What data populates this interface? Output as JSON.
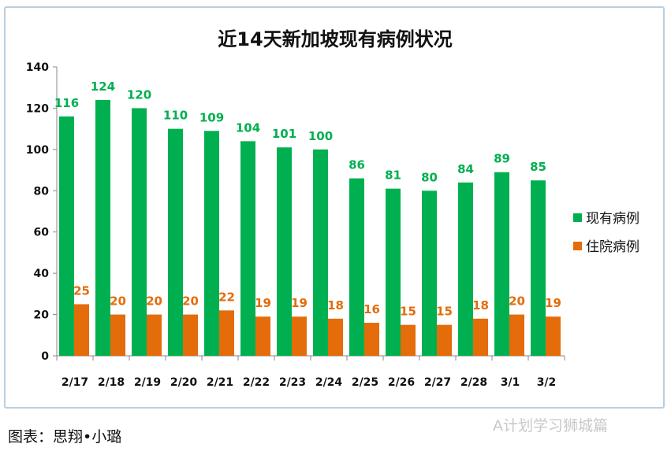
{
  "chart_data": {
    "type": "bar",
    "title": "近14天新加坡现有病例状况",
    "categories": [
      "2/17",
      "2/18",
      "2/19",
      "2/20",
      "2/21",
      "2/22",
      "2/23",
      "2/24",
      "2/25",
      "2/26",
      "2/27",
      "2/28",
      "3/1",
      "3/2"
    ],
    "series": [
      {
        "name": "现有病例",
        "color": "#00B050",
        "values": [
          116,
          124,
          120,
          110,
          109,
          104,
          101,
          100,
          86,
          81,
          80,
          84,
          89,
          85
        ]
      },
      {
        "name": "住院病例",
        "color": "#E46C0A",
        "values": [
          25,
          20,
          20,
          20,
          22,
          19,
          19,
          18,
          16,
          15,
          15,
          18,
          20,
          19
        ]
      }
    ],
    "ylim": [
      0,
      140
    ],
    "yticks": [
      0,
      20,
      40,
      60,
      80,
      100,
      120,
      140
    ],
    "grid": false,
    "legend": "right"
  },
  "caption": "图表：思翔•小璐",
  "watermark": "A计划学习狮城篇"
}
